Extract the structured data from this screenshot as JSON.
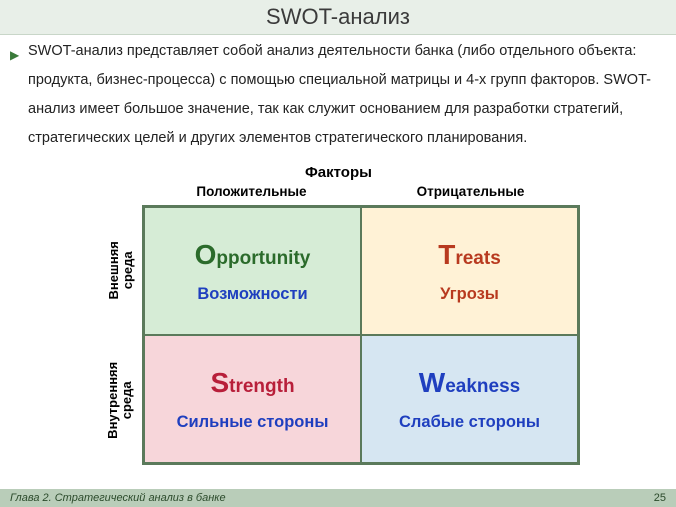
{
  "title": "SWOT-анализ",
  "description": "SWOT-анализ представляет собой анализ деятельности банка (либо отдельного объекта: продукта, бизнес-процесса) с помощью специальной матрицы и 4-х групп факторов. SWOT-анализ имеет большое значение, так как служит основанием для разработки стратегий, стратегических целей и других элементов стратегического планирования.",
  "factors_label": "Факторы",
  "columns": {
    "positive": "Положительные",
    "negative": "Отрицательные"
  },
  "rows": {
    "external": "Внешняя\nсреда",
    "internal": "Внутренняя\nсреда"
  },
  "matrix": {
    "type": "swot-2x2",
    "border_color": "#5b7a5b",
    "cells": [
      {
        "cap": "O",
        "rest": "pportunity",
        "sub": "Возможности",
        "bg": "#d6ecd6",
        "main_color": "#2b6b2b",
        "sub_color": "#1f3fbf"
      },
      {
        "cap": "T",
        "rest": "reats",
        "sub": "Угрозы",
        "bg": "#fff2d6",
        "main_color": "#b83a1f",
        "sub_color": "#b83a1f"
      },
      {
        "cap": "S",
        "rest": "trength",
        "sub": "Сильные стороны",
        "bg": "#f7d6da",
        "main_color": "#b81f3a",
        "sub_color": "#1f3fbf"
      },
      {
        "cap": "W",
        "rest": "eakness",
        "sub": "Слабые стороны",
        "bg": "#d6e6f2",
        "main_color": "#1f3fbf",
        "sub_color": "#1f3fbf"
      }
    ]
  },
  "footer": {
    "chapter": "Глава 2. Стратегический анализ в банке",
    "page": "25",
    "bar_color": "#b9cdb9"
  },
  "title_bar_bg": "#e8efe8",
  "body_bg": "#ffffff"
}
